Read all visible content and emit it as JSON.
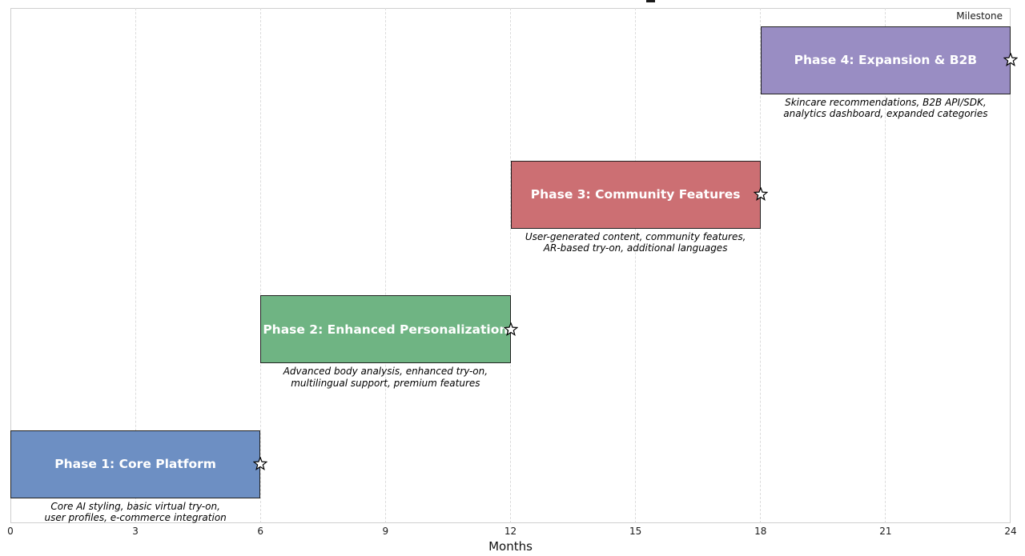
{
  "figure": {
    "legend_label": "Milestone"
  },
  "chart_data": {
    "type": "bar",
    "subtype": "gantt",
    "orientation": "horizontal",
    "title": "",
    "xlabel": "Months",
    "xlim": [
      0,
      24
    ],
    "xticks": [
      0,
      3,
      6,
      9,
      12,
      15,
      18,
      21,
      24
    ],
    "grid": "vertical-dashed",
    "legend": [
      {
        "label": "Milestone",
        "marker": "star",
        "position": "upper-right"
      }
    ],
    "phases": [
      {
        "label": "Phase 1: Core Platform",
        "start_month": 0,
        "end_month": 6,
        "milestone_month": 6,
        "bar_color": "#6d8fc3",
        "description_lines": [
          "Core AI styling, basic virtual try-on,",
          "user profiles, e-commerce integration"
        ]
      },
      {
        "label": "Phase 2: Enhanced Personalization",
        "start_month": 6,
        "end_month": 12,
        "milestone_month": 12,
        "bar_color": "#6fb483",
        "description_lines": [
          "Advanced body analysis, enhanced try-on,",
          "multilingual support, premium features"
        ]
      },
      {
        "label": "Phase 3: Community Features",
        "start_month": 12,
        "end_month": 18,
        "milestone_month": 18,
        "bar_color": "#cc6f73",
        "description_lines": [
          "User-generated content, community features,",
          "AR-based try-on, additional languages"
        ]
      },
      {
        "label": "Phase 4: Expansion & B2B",
        "start_month": 18,
        "end_month": 24,
        "milestone_month": 24,
        "bar_color": "#998dc3",
        "description_lines": [
          "Skincare recommendations, B2B API/SDK,",
          "analytics dashboard, expanded categories"
        ]
      }
    ],
    "colors": {
      "bar_edge": "#202020",
      "grid": "#dcdcdc",
      "bar_label_text": "#ffffff",
      "milestone_fill": "#ffffff",
      "milestone_edge": "#000000",
      "spine": "#cfcfcf"
    }
  }
}
